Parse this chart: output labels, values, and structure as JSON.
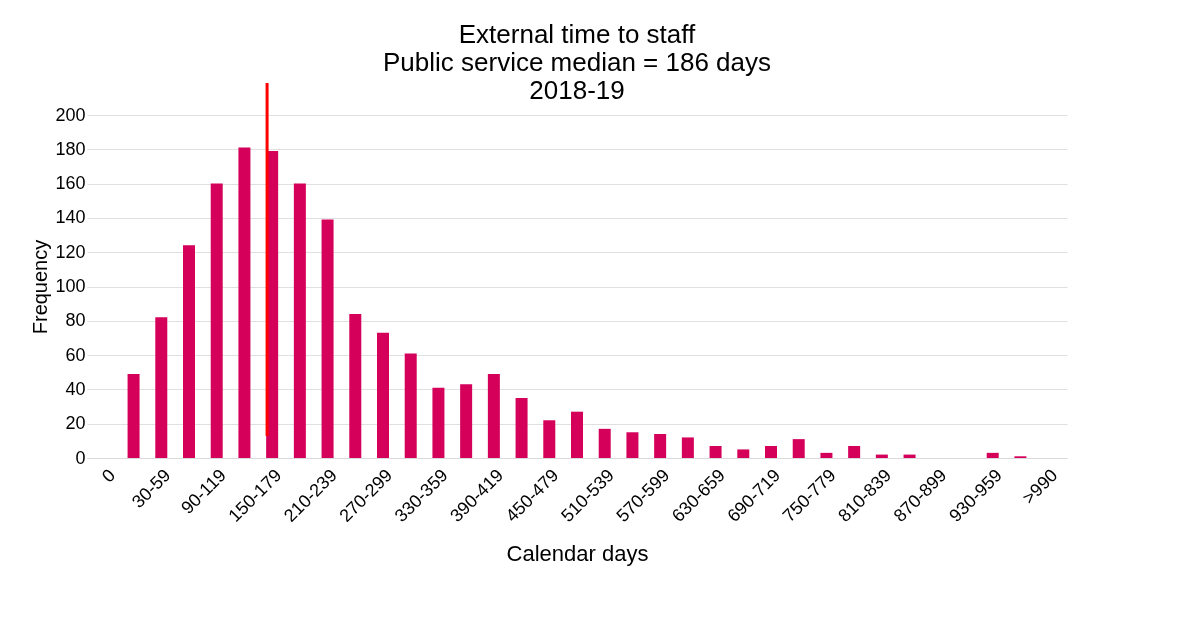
{
  "chart_data": {
    "type": "bar",
    "title": "External time to staff",
    "subtitle": "Public service median = 186 days\n2018-19",
    "xlabel": "Calendar days",
    "ylabel": "Frequency",
    "categories": [
      "0",
      null,
      "30-59",
      null,
      "90-119",
      null,
      "150-179",
      null,
      "210-239",
      null,
      "270-299",
      null,
      "330-359",
      null,
      "390-419",
      null,
      "450-479",
      null,
      "510-539",
      null,
      "570-599",
      null,
      "630-659",
      null,
      "690-719",
      null,
      "750-779",
      null,
      "810-839",
      null,
      "870-899",
      null,
      "930-959",
      null,
      ">990"
    ],
    "values": [
      0,
      49,
      82,
      124,
      160,
      181,
      179,
      160,
      139,
      84,
      73,
      61,
      41,
      43,
      49,
      35,
      22,
      27,
      17,
      15,
      14,
      12,
      7,
      5,
      7,
      11,
      3,
      7,
      2,
      2,
      0,
      0,
      3,
      1,
      0
    ],
    "color": "#d5005a",
    "ylim": [
      0,
      200
    ],
    "yticks": [
      0,
      20,
      40,
      60,
      80,
      100,
      120,
      140,
      160,
      180,
      200
    ],
    "grid": "y"
  }
}
